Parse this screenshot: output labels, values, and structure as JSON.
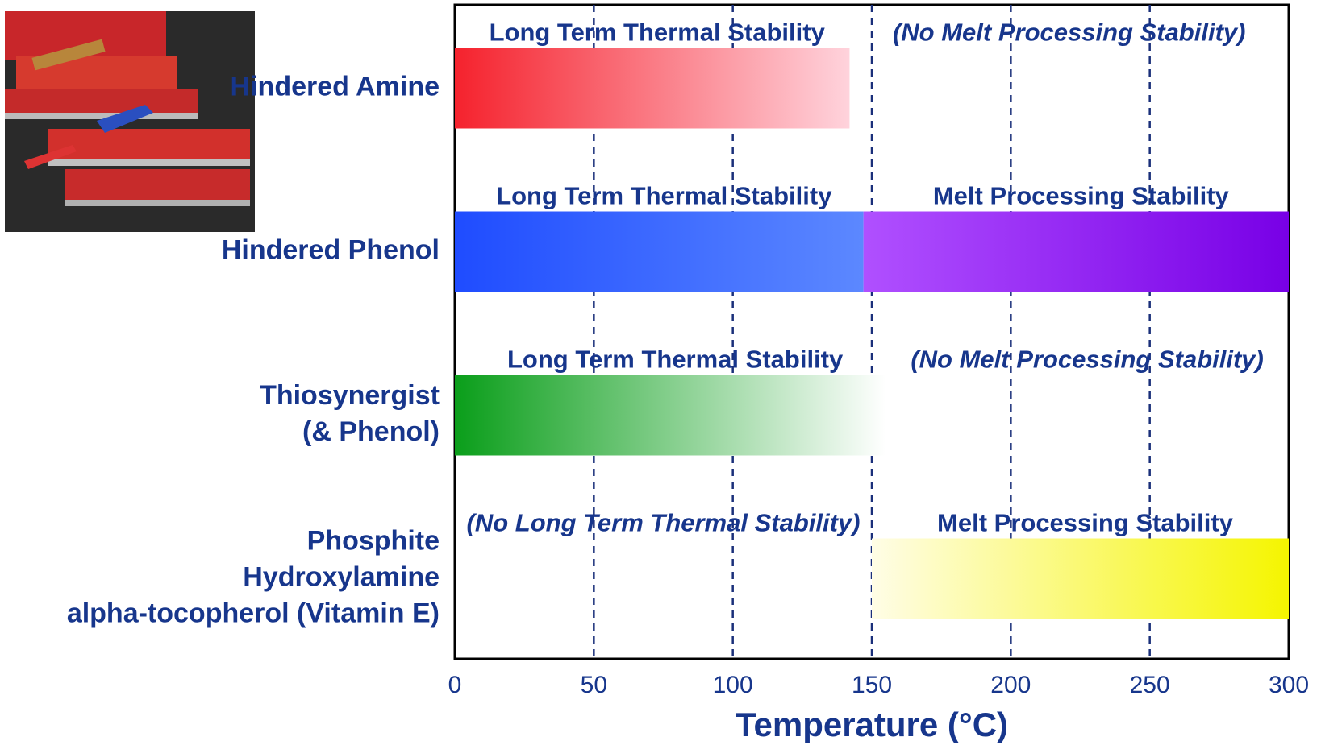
{
  "chart_data": {
    "type": "range",
    "rows": [
      {
        "label": [
          "Hindered Amine"
        ],
        "segments": [
          {
            "name": "Long Term Thermal Stability",
            "start": 0,
            "end": 142,
            "color": [
              "#f5222d",
              "#ffd3dc"
            ]
          }
        ],
        "note": "(No Melt Processing Stability)"
      },
      {
        "label": [
          "Hindered Phenol"
        ],
        "segments": [
          {
            "name": "Long Term Thermal Stability",
            "start": 0,
            "end": 147,
            "color": [
              "#1f4cff",
              "#5c88ff"
            ]
          },
          {
            "name": "Melt Processing Stability",
            "start": 147,
            "end": 300,
            "color": [
              "#b050ff",
              "#7800e6"
            ]
          }
        ]
      },
      {
        "label": [
          "Thiosynergist",
          "(& Phenol)"
        ],
        "segments": [
          {
            "name": "Long Term Thermal Stability",
            "start": 0,
            "end": 155,
            "color": [
              "#0a9e1a",
              "#ffffff"
            ]
          }
        ],
        "note": "(No Melt Processing Stability)"
      },
      {
        "label": [
          "Phosphite",
          "Hydroxylamine",
          "alpha-tocopherol (Vitamin E)"
        ],
        "segments": [
          {
            "name": "Melt Processing Stability",
            "start": 150,
            "end": 300,
            "color": [
              "#fffde6",
              "#f5f500"
            ]
          }
        ],
        "note": "(No Long Term Thermal Stability)"
      }
    ],
    "xlabel": "Temperature (°C)",
    "xlim": [
      0,
      300
    ],
    "xticks": [
      0,
      50,
      100,
      150,
      200,
      250,
      300
    ],
    "grid": true,
    "grid_color": "#1a2f7a",
    "text_color": "#17368c"
  }
}
